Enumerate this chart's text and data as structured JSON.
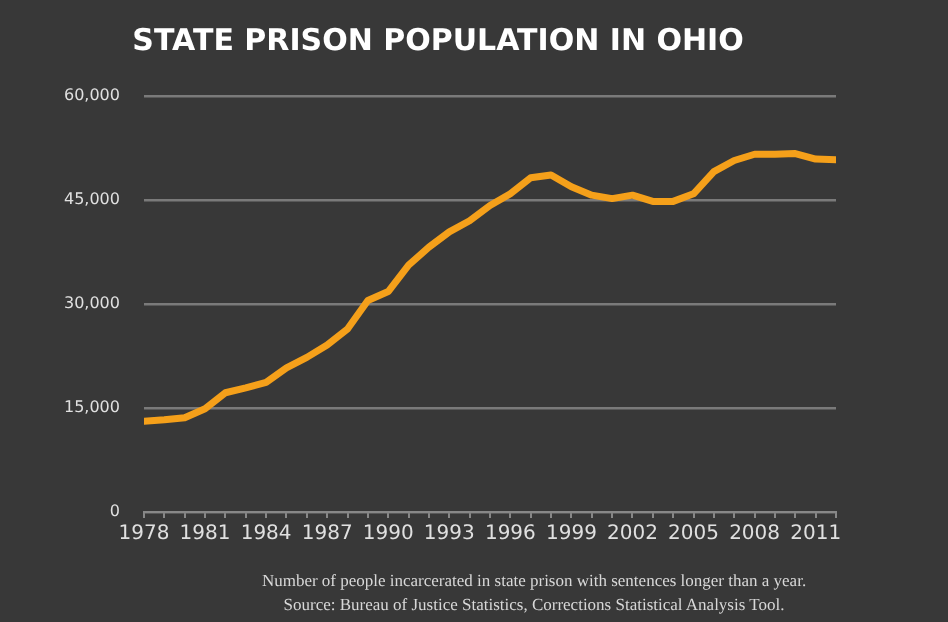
{
  "chart_data": {
    "type": "line",
    "title": "STATE PRISON POPULATION IN OHIO",
    "x": [
      1978,
      1979,
      1980,
      1981,
      1982,
      1983,
      1984,
      1985,
      1986,
      1987,
      1988,
      1989,
      1990,
      1991,
      1992,
      1993,
      1994,
      1995,
      1996,
      1997,
      1998,
      1999,
      2000,
      2001,
      2002,
      2003,
      2004,
      2005,
      2006,
      2007,
      2008,
      2009,
      2010,
      2011,
      2012
    ],
    "series": [
      {
        "color": "#f5a01a",
        "values": [
          13100,
          13300,
          13600,
          14900,
          17200,
          17900,
          18700,
          20800,
          22300,
          24100,
          26400,
          30500,
          31800,
          35600,
          38200,
          40400,
          42000,
          44200,
          45900,
          48200,
          48600,
          46900,
          45700,
          45200,
          45700,
          44800,
          44800,
          45900,
          49100,
          50700,
          51600,
          51600,
          51700,
          50900,
          50800
        ]
      }
    ],
    "xlim": [
      1978,
      2012
    ],
    "xticks": [
      1978,
      {
        "value": 1979,
        "label": null
      },
      {
        "value": 1980,
        "label": null
      },
      1981,
      {
        "value": 1982,
        "label": null
      },
      {
        "value": 1983,
        "label": null
      },
      1984,
      {
        "value": 1985,
        "label": null
      },
      {
        "value": 1986,
        "label": null
      },
      1987,
      {
        "value": 1988,
        "label": null
      },
      {
        "value": 1989,
        "label": null
      },
      1990,
      {
        "value": 1991,
        "label": null
      },
      {
        "value": 1992,
        "label": null
      },
      1993,
      {
        "value": 1994,
        "label": null
      },
      {
        "value": 1995,
        "label": null
      },
      1996,
      {
        "value": 1997,
        "label": null
      },
      {
        "value": 1998,
        "label": null
      },
      1999,
      {
        "value": 2000,
        "label": null
      },
      {
        "value": 2001,
        "label": null
      },
      2002,
      {
        "value": 2003,
        "label": null
      },
      {
        "value": 2004,
        "label": null
      },
      2005,
      {
        "value": 2006,
        "label": null
      },
      {
        "value": 2007,
        "label": null
      },
      2008,
      {
        "value": 2009,
        "label": null
      },
      {
        "value": 2010,
        "label": null
      },
      2011,
      {
        "value": 2012,
        "label": null
      }
    ],
    "ylim": [
      0,
      60000
    ],
    "yticks": [
      0,
      {
        "value": 15000,
        "label": "15,000"
      },
      {
        "value": 30000,
        "label": "30,000"
      },
      {
        "value": 45000,
        "label": "45,000"
      },
      {
        "value": 60000,
        "label": "60,000"
      }
    ],
    "grid": "y",
    "legend": false,
    "marker": "none",
    "line_style": "solid",
    "annotations": [
      "Number of people incarcerated in state prison with sentences longer than a year.",
      "Source: Bureau of Justice Statistics, Corrections Statistical Analysis Tool."
    ]
  }
}
